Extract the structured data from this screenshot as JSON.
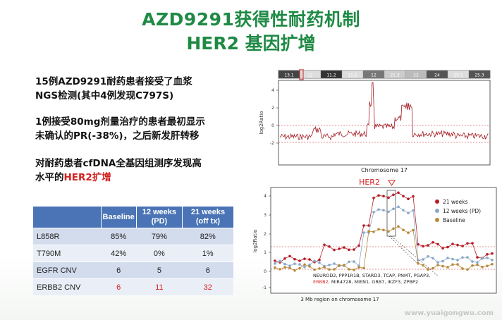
{
  "title_line1": "AZD9291获得性耐药机制",
  "title_line2": "HER2 基因扩增",
  "bullets": [
    {
      "line1": "15例AZD9291耐药患者接受了血浆",
      "line2": "NGS检测(其中4例发现C797S)"
    },
    {
      "line1": "1例接受80mg剂量治疗的患者最初显示",
      "line2": "未确认的PR(-38%)，之后新发肝转移"
    },
    {
      "line1": "对耐药患者cfDNA全基因组测序发现高",
      "line2_pre": "水平的",
      "line2_highlight": "HER2扩增"
    }
  ],
  "table": {
    "headers": [
      "",
      "Baseline",
      "12 weeks (PD)",
      "21 weeks (off tx)"
    ],
    "rows": [
      {
        "label": "L858R",
        "values": [
          "85%",
          "79%",
          "82%"
        ],
        "highlight": false
      },
      {
        "label": "T790M",
        "values": [
          "42%",
          "0%",
          "1%"
        ],
        "highlight": false
      },
      {
        "label": "EGFR CNV",
        "values": [
          "6",
          "5",
          "6"
        ],
        "highlight": false
      },
      {
        "label": "ERBB2 CNV",
        "values": [
          "6",
          "11",
          "32"
        ],
        "highlight": true
      }
    ]
  },
  "chart_top": {
    "ideogram_bands": [
      "13.1",
      "12",
      "11.2",
      "11.2",
      "12",
      "21.3",
      "22",
      "24",
      "25.1",
      "25.3"
    ],
    "ylabel": "log2Ratio",
    "y_ticks": [
      "4",
      "2",
      "0",
      "-2"
    ],
    "xlabel": "Chromosome 17"
  },
  "chart_bottom": {
    "gene_label": "HER2",
    "ylabel": "log2Ratio",
    "y_ticks": [
      "4",
      "3",
      "2",
      "1",
      "0",
      "-1"
    ],
    "legend": [
      {
        "label": "21 weeks",
        "color": "#b51e26"
      },
      {
        "label": "12 weeks (PD)",
        "color": "#8aa8c8"
      },
      {
        "label": "Baseline",
        "color": "#b8893c"
      }
    ],
    "genes_line1": "NEUROD2, PPP1R1B, STARD3, TCAP, PNMT, PGAP3,",
    "genes_line2_highlight": "ERBB2,",
    "genes_line2_rest": " MIR4728, MIEN1, GRB7, IKZF3, ZPBP2",
    "xlabel": "3 Mb region on chromosome 17"
  },
  "watermark": "www.yuaigongwu.com",
  "colors": {
    "title": "#1f8a45",
    "highlight": "#d42020",
    "table_header": "#4a74b5"
  }
}
